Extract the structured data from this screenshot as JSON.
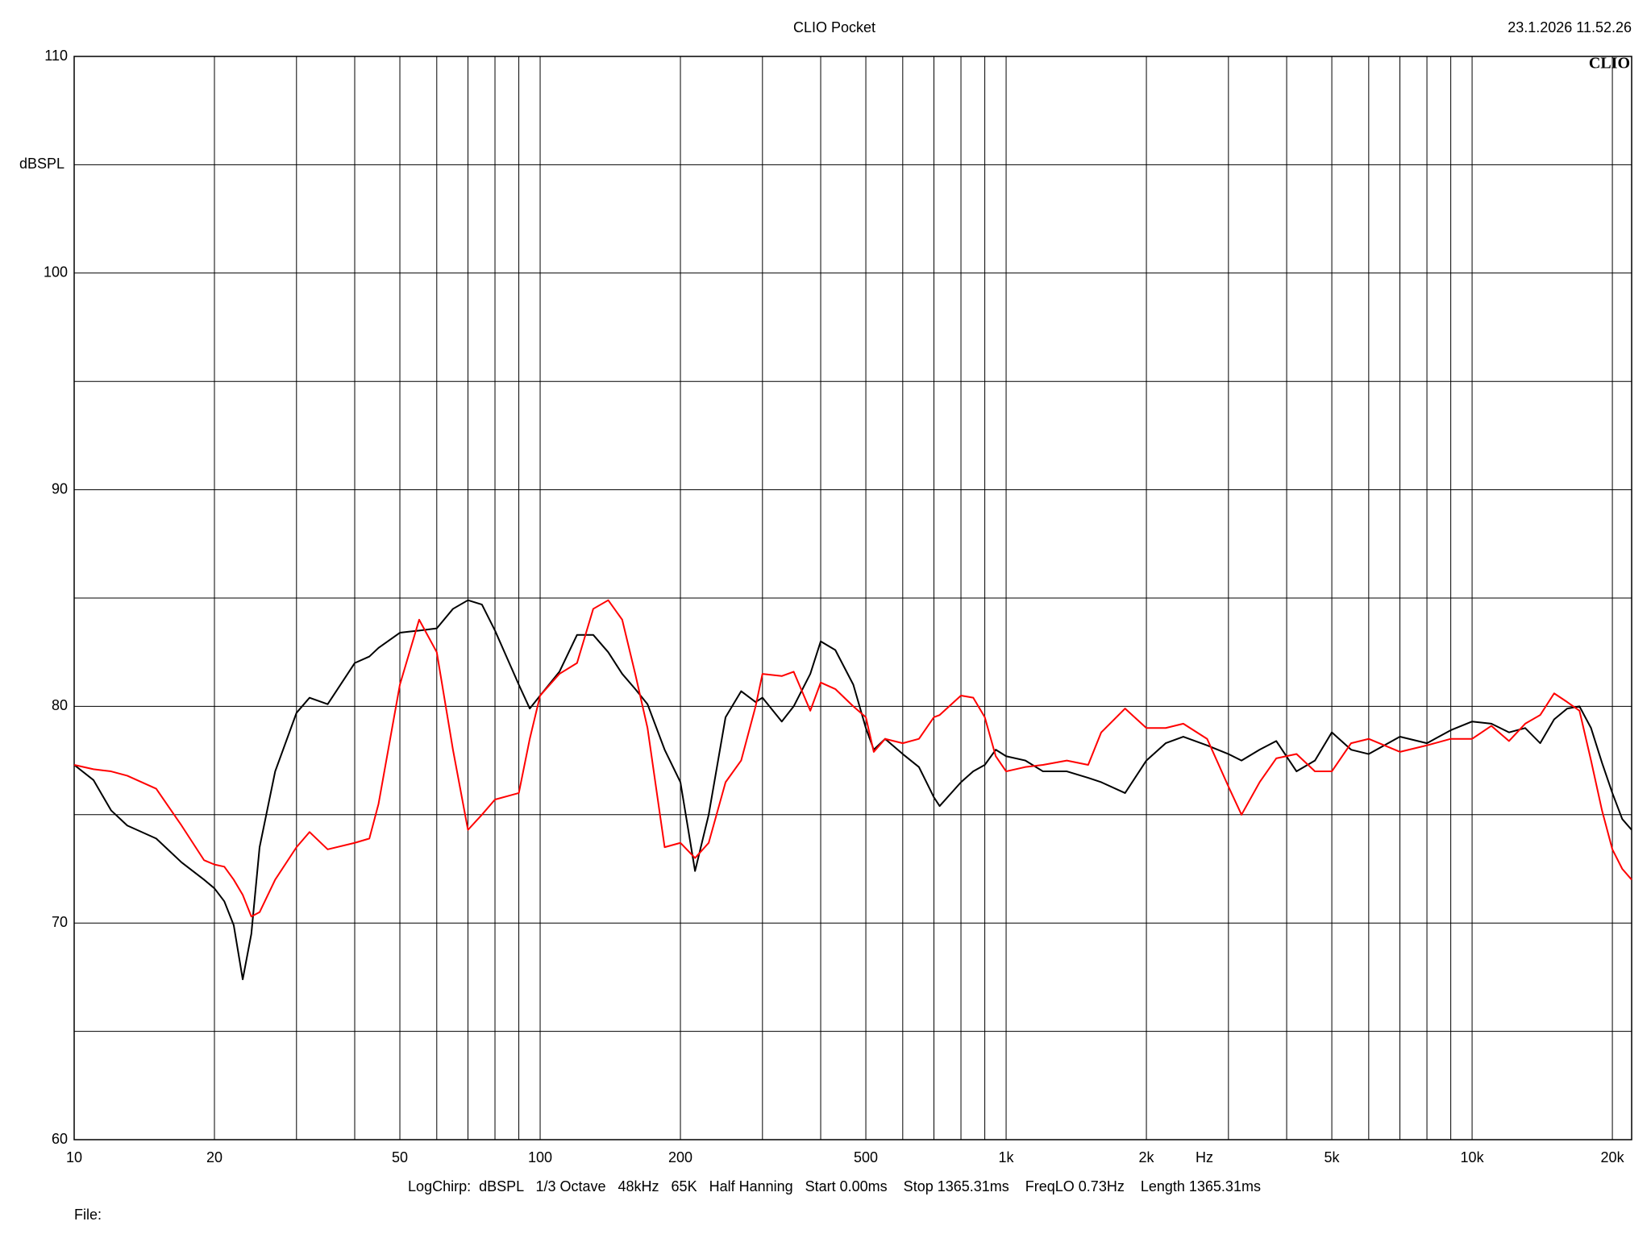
{
  "chart_data": {
    "type": "line",
    "title": "CLIO Pocket",
    "timestamp": "23.1.2026 11.52.26",
    "logo": "CLIO",
    "x_label": "Hz",
    "y_label": "dBSPL",
    "footer": "LogChirp:  dBSPL   1/3 Octave   48kHz   65K   Half Hanning   Start 0.00ms    Stop 1365.31ms    FreqLO 0.73Hz    Length 1365.31ms",
    "file_label": "File:",
    "x_log": true,
    "grid": true,
    "xlim": [
      10,
      22000
    ],
    "ylim": [
      60,
      110
    ],
    "xticks": [
      10,
      20,
      50,
      100,
      200,
      500,
      {
        "value": 1000,
        "label": "1k"
      },
      {
        "value": 2000,
        "label": "2k"
      },
      {
        "value": 5000,
        "label": "5k"
      },
      {
        "value": 10000,
        "label": "10k"
      },
      {
        "value": 20000,
        "label": "20k"
      }
    ],
    "xgrid_minor": [
      30,
      40,
      60,
      70,
      80,
      90,
      300,
      400,
      600,
      700,
      800,
      900,
      3000,
      4000,
      6000,
      7000,
      8000,
      9000
    ],
    "yticks": [
      60,
      70,
      80,
      90,
      100,
      110
    ],
    "ygrid_minor": [
      65,
      75,
      85,
      95,
      105
    ],
    "x": [
      10,
      11,
      12,
      13,
      15,
      17,
      19,
      20,
      21,
      22,
      23,
      24,
      25,
      27,
      30,
      32,
      35,
      40,
      43,
      45,
      50,
      55,
      60,
      65,
      70,
      75,
      80,
      90,
      95,
      100,
      110,
      120,
      130,
      140,
      150,
      160,
      170,
      185,
      200,
      215,
      230,
      250,
      270,
      290,
      300,
      330,
      350,
      380,
      400,
      430,
      470,
      500,
      520,
      550,
      600,
      650,
      700,
      720,
      800,
      850,
      900,
      950,
      1000,
      1100,
      1200,
      1350,
      1500,
      1600,
      1800,
      2000,
      2200,
      2400,
      2700,
      3000,
      3200,
      3500,
      3800,
      4200,
      4600,
      5000,
      5500,
      6000,
      7000,
      8000,
      9000,
      10000,
      11000,
      12000,
      13000,
      14000,
      15000,
      16000,
      17000,
      18000,
      19000,
      20000,
      21000,
      22000
    ],
    "series": [
      {
        "color": "#000000",
        "values": [
          77.3,
          76.6,
          75.2,
          74.5,
          73.9,
          72.8,
          72.0,
          71.6,
          71.0,
          69.9,
          67.4,
          69.5,
          73.5,
          77.0,
          79.7,
          80.4,
          80.1,
          82.0,
          82.3,
          82.7,
          83.4,
          83.5,
          83.6,
          84.5,
          84.9,
          84.7,
          83.5,
          81.0,
          79.9,
          80.5,
          81.6,
          83.3,
          83.3,
          82.5,
          81.5,
          80.8,
          80.1,
          78.0,
          76.5,
          72.4,
          75.0,
          79.5,
          80.7,
          80.2,
          80.4,
          79.3,
          80.0,
          81.5,
          83.0,
          82.6,
          81.0,
          79.0,
          78.0,
          78.5,
          77.8,
          77.2,
          75.8,
          75.4,
          76.5,
          77.0,
          77.3,
          78.0,
          77.7,
          77.5,
          77.0,
          77.0,
          76.7,
          76.5,
          76.0,
          77.5,
          78.3,
          78.6,
          78.2,
          77.8,
          77.5,
          78.0,
          78.4,
          77.0,
          77.5,
          78.8,
          78.0,
          77.8,
          78.6,
          78.3,
          78.9,
          79.3,
          79.2,
          78.8,
          79.0,
          78.3,
          79.4,
          79.9,
          80.0,
          79.0,
          77.4,
          76.0,
          74.8,
          74.3
        ]
      },
      {
        "color": "#ff0000",
        "values": [
          77.3,
          77.1,
          77.0,
          76.8,
          76.2,
          74.5,
          72.9,
          72.7,
          72.6,
          72.0,
          71.3,
          70.3,
          70.5,
          72.0,
          73.5,
          74.2,
          73.4,
          73.7,
          73.9,
          75.5,
          81.0,
          84.0,
          82.5,
          78.0,
          74.3,
          75.0,
          75.7,
          76.0,
          78.5,
          80.5,
          81.5,
          82.0,
          84.5,
          84.9,
          84.0,
          81.5,
          79.0,
          73.5,
          73.7,
          73.0,
          73.7,
          76.5,
          77.5,
          80.0,
          81.5,
          81.4,
          81.6,
          79.8,
          81.1,
          80.8,
          80.0,
          79.5,
          77.9,
          78.5,
          78.3,
          78.5,
          79.5,
          79.6,
          80.5,
          80.4,
          79.5,
          77.7,
          77.0,
          77.2,
          77.3,
          77.5,
          77.3,
          78.8,
          79.9,
          79.0,
          79.0,
          79.2,
          78.5,
          76.3,
          75.0,
          76.5,
          77.6,
          77.8,
          77.0,
          77.0,
          78.3,
          78.5,
          77.9,
          78.2,
          78.5,
          78.5,
          79.1,
          78.4,
          79.2,
          79.6,
          80.6,
          80.2,
          79.8,
          77.5,
          75.2,
          73.4,
          72.5,
          72.0
        ]
      }
    ]
  }
}
